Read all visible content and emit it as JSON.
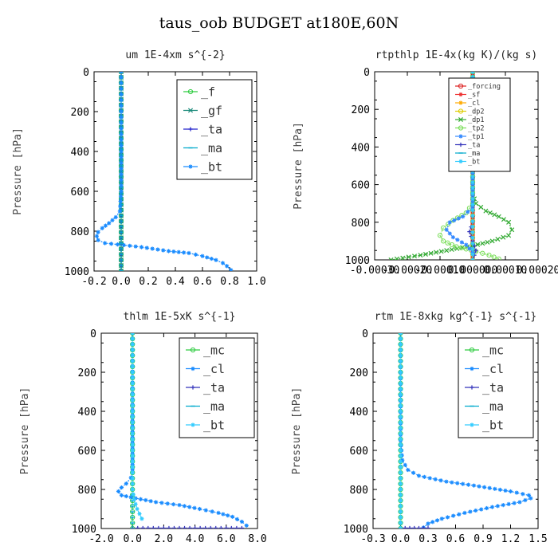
{
  "figure": {
    "title": "taus_oob  BUDGET at180E,60N"
  },
  "chart_data": [
    {
      "type": "line",
      "title": "um   1E-4xm s^{-2}",
      "ylabel": "Pressure [hPa]",
      "xlabel": "",
      "xlim": [
        -0.2,
        1.0
      ],
      "ylim": [
        1000,
        0
      ],
      "xticks": [
        -0.2,
        0.0,
        0.2,
        0.4,
        0.6,
        0.8,
        1.0
      ],
      "xtick_labels": [
        "-0.2",
        "0.0",
        "0.2",
        "0.4",
        "0.6",
        "0.8",
        "1.0"
      ],
      "yticks": [
        0,
        200,
        400,
        600,
        800,
        1000
      ],
      "ytick_labels": [
        "0",
        "200",
        "400",
        "600",
        "800",
        "1000"
      ],
      "legend_position": "top-right",
      "legend_font": "large",
      "series": [
        {
          "name": "_f",
          "color": "#2ecc40",
          "marker": "o",
          "x": [
            0,
            0
          ],
          "y": [
            0,
            1000
          ]
        },
        {
          "name": "_gf",
          "color": "#1a8a7a",
          "marker": "x",
          "x": [
            0,
            0
          ],
          "y": [
            0,
            1000
          ]
        },
        {
          "name": "_ta",
          "color": "#2222cc",
          "marker": "+",
          "x": [
            0,
            0
          ],
          "y": [
            0,
            1000
          ]
        },
        {
          "name": "_ma",
          "color": "#00aacc",
          "marker": "-",
          "x": [
            0,
            0
          ],
          "y": [
            0,
            1000
          ]
        },
        {
          "name": "_bt",
          "color": "#1a8cff",
          "marker": "*",
          "x": [
            0,
            0,
            0,
            0,
            -0.01,
            -0.04,
            -0.09,
            -0.14,
            -0.17,
            -0.18,
            -0.17,
            -0.12,
            0.02,
            0.15,
            0.35,
            0.5,
            0.6,
            0.7,
            0.75,
            0.78,
            0.81
          ],
          "y": [
            0,
            200,
            400,
            600,
            700,
            730,
            760,
            785,
            805,
            825,
            845,
            860,
            870,
            880,
            900,
            910,
            925,
            945,
            960,
            975,
            995
          ]
        }
      ]
    },
    {
      "type": "line",
      "title": "rtpthlp   1E-4x(kg K)/(kg s)",
      "ylabel": "Pressure [hPa]",
      "xlabel": "",
      "xlim": [
        -0.0003,
        0.0002
      ],
      "ylim": [
        1000,
        0
      ],
      "xticks": [
        -0.0003,
        -0.0002,
        -0.0001,
        0.0,
        0.0001,
        0.0002
      ],
      "xtick_labels": [
        "-0.00030",
        "-0.00020",
        "-0.00010",
        "0.000000",
        "0.00010",
        "0.00020"
      ],
      "yticks": [
        0,
        200,
        400,
        600,
        800,
        1000
      ],
      "ytick_labels": [
        "0",
        "200",
        "400",
        "600",
        "800",
        "1000"
      ],
      "legend_position": "top-right",
      "legend_font": "small",
      "series": [
        {
          "name": "_forcing",
          "color": "#dd2222",
          "marker": "o",
          "x": [
            0,
            0
          ],
          "y": [
            0,
            1000
          ],
          "width": 5
        },
        {
          "name": "_sf",
          "color": "#ee3333",
          "marker": "*",
          "x": [
            0,
            0
          ],
          "y": [
            0,
            1000
          ]
        },
        {
          "name": "_cl",
          "color": "#ffaa00",
          "marker": "*",
          "x": [
            0,
            0
          ],
          "y": [
            0,
            1000
          ]
        },
        {
          "name": "_dp2",
          "color": "#ddcc00",
          "marker": "o",
          "x": [
            0,
            0
          ],
          "y": [
            0,
            1000
          ]
        },
        {
          "name": "_dp1",
          "color": "#33aa33",
          "marker": "x",
          "x": [
            0,
            0,
            1e-05,
            4e-05,
            8e-05,
            0.00011,
            0.00012,
            0.00011,
            6e-05,
            0.0,
            -8e-05,
            -0.00016,
            -0.00025
          ],
          "y": [
            0,
            650,
            700,
            740,
            770,
            800,
            840,
            870,
            900,
            925,
            950,
            975,
            1000
          ]
        },
        {
          "name": "_tp2",
          "color": "#77dd55",
          "marker": "o",
          "x": [
            0,
            0,
            -2e-05,
            -6e-05,
            -9e-05,
            -0.0001,
            -9e-05,
            -5e-05,
            1e-05,
            5e-05,
            8e-05
          ],
          "y": [
            0,
            700,
            750,
            790,
            830,
            870,
            900,
            930,
            955,
            975,
            995
          ]
        },
        {
          "name": "_tp1",
          "color": "#3388ff",
          "marker": "*",
          "x": [
            0,
            0,
            -3e-05,
            -7e-05,
            -8e-05,
            -6e-05,
            -2e-05,
            0.0
          ],
          "y": [
            0,
            720,
            770,
            800,
            840,
            880,
            920,
            960
          ]
        },
        {
          "name": "_ta",
          "color": "#3333bb",
          "marker": "+",
          "x": [
            0,
            0,
            -1e-05,
            0,
            1e-05,
            0
          ],
          "y": [
            0,
            800,
            850,
            900,
            950,
            1000
          ]
        },
        {
          "name": "_ma",
          "color": "#00aacc",
          "marker": "-",
          "x": [
            0,
            0
          ],
          "y": [
            0,
            1000
          ]
        },
        {
          "name": "_bt",
          "color": "#33ccff",
          "marker": "*",
          "x": [
            0,
            0
          ],
          "y": [
            0,
            1000
          ]
        }
      ]
    },
    {
      "type": "line",
      "title": "thlm   1E-5xK s^{-1}",
      "ylabel": "Pressure [hPa]",
      "xlabel": "",
      "xlim": [
        -2.0,
        8.0
      ],
      "ylim": [
        1000,
        0
      ],
      "xticks": [
        -2.0,
        0.0,
        2.0,
        4.0,
        6.0,
        8.0
      ],
      "xtick_labels": [
        "-2.0",
        "0.0",
        "2.0",
        "4.0",
        "6.0",
        "8.0"
      ],
      "yticks": [
        0,
        200,
        400,
        600,
        800,
        1000
      ],
      "ytick_labels": [
        "0",
        "200",
        "400",
        "600",
        "800",
        "1000"
      ],
      "legend_position": "top-right",
      "legend_font": "large",
      "series": [
        {
          "name": "_mc",
          "color": "#2ecc40",
          "marker": "o",
          "x": [
            0,
            0
          ],
          "y": [
            0,
            1000
          ]
        },
        {
          "name": "_cl",
          "color": "#1a8cff",
          "marker": "*",
          "x": [
            0,
            0,
            -0.1,
            -0.4,
            -0.7,
            -0.9,
            -0.7,
            0.2,
            1.5,
            3.0,
            4.3,
            5.5,
            6.4,
            7.0,
            7.3
          ],
          "y": [
            0,
            700,
            740,
            770,
            790,
            810,
            830,
            845,
            865,
            880,
            900,
            920,
            940,
            965,
            985
          ]
        },
        {
          "name": "_ta",
          "color": "#3333bb",
          "marker": "+",
          "x": [
            0,
            2,
            4,
            6,
            7
          ],
          "y": [
            998,
            998,
            998,
            998,
            998
          ]
        },
        {
          "name": "_ma",
          "color": "#00aacc",
          "marker": "-",
          "x": [
            0,
            0
          ],
          "y": [
            0,
            1000
          ]
        },
        {
          "name": "_bt",
          "color": "#33ccff",
          "marker": "*",
          "x": [
            0,
            0,
            0.1,
            0.3,
            0.6
          ],
          "y": [
            0,
            800,
            850,
            900,
            950
          ]
        }
      ]
    },
    {
      "type": "line",
      "title": "rtm   1E-8xkg kg^{-1} s^{-1}",
      "ylabel": "Pressure [hPa]",
      "xlabel": "",
      "xlim": [
        -0.3,
        1.5
      ],
      "ylim": [
        1000,
        0
      ],
      "xticks": [
        -0.3,
        0.0,
        0.3,
        0.6,
        0.9,
        1.2,
        1.5
      ],
      "xtick_labels": [
        "-0.3",
        "0.0",
        "0.3",
        "0.6",
        "0.9",
        "1.2",
        "1.5"
      ],
      "yticks": [
        0,
        200,
        400,
        600,
        800,
        1000
      ],
      "ytick_labels": [
        "0",
        "200",
        "400",
        "600",
        "800",
        "1000"
      ],
      "legend_position": "top-right",
      "legend_font": "large",
      "series": [
        {
          "name": "_mc",
          "color": "#2ecc40",
          "marker": "o",
          "x": [
            0,
            0
          ],
          "y": [
            0,
            1000
          ]
        },
        {
          "name": "_cl",
          "color": "#1a8cff",
          "marker": "*",
          "x": [
            0,
            0,
            0.02,
            0.08,
            0.2,
            0.5,
            0.8,
            1.2,
            1.4,
            1.42,
            1.3,
            1.0,
            0.7,
            0.45,
            0.3,
            0.25
          ],
          "y": [
            0,
            550,
            650,
            700,
            730,
            760,
            780,
            810,
            830,
            845,
            865,
            890,
            920,
            950,
            975,
            995
          ]
        },
        {
          "name": "_ta",
          "color": "#3333bb",
          "marker": "+",
          "x": [
            0,
            0.1,
            0.2,
            0.3
          ],
          "y": [
            998,
            998,
            998,
            998
          ]
        },
        {
          "name": "_ma",
          "color": "#00aacc",
          "marker": "-",
          "x": [
            0,
            0
          ],
          "y": [
            0,
            1000
          ]
        },
        {
          "name": "_bt",
          "color": "#33ccff",
          "marker": "*",
          "x": [
            0,
            0
          ],
          "y": [
            0,
            1000
          ]
        }
      ]
    }
  ]
}
